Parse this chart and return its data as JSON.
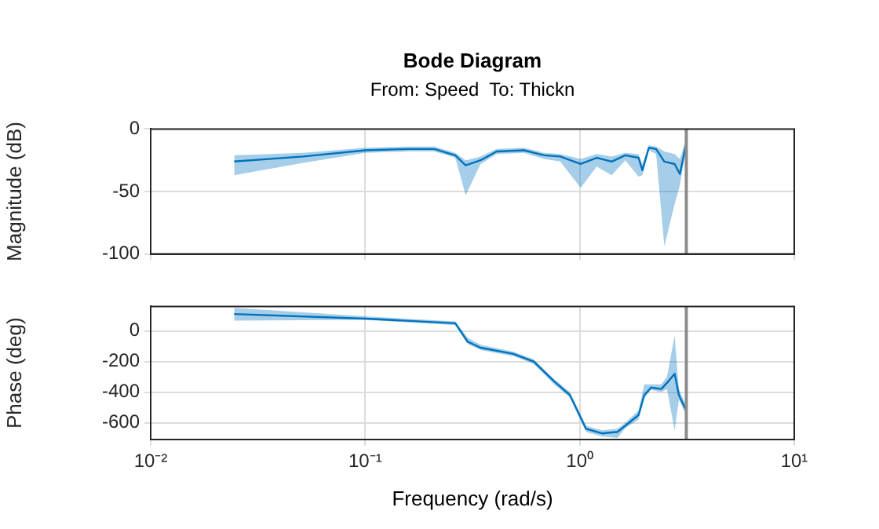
{
  "chart_data": [
    {
      "type": "line",
      "title": "Bode Diagram",
      "subtitle": "From: Speed  To: Thickn",
      "ylabel": "Magnitude (dB)",
      "log": "x",
      "grid": true,
      "tick_labels": "y",
      "xlim": [
        0.01,
        10
      ],
      "xticks": [
        {
          "value": 0.01,
          "label": null
        },
        {
          "value": 0.1,
          "label": null
        },
        {
          "value": 1,
          "label": null
        },
        {
          "value": 10,
          "label": null
        }
      ],
      "ylim": [
        -100,
        0
      ],
      "yticks": [
        -100,
        -50,
        0
      ],
      "x": [
        0.0245,
        0.0515,
        0.1,
        0.158,
        0.21,
        0.263,
        0.294,
        0.345,
        0.41,
        0.55,
        0.683,
        0.81,
        1.01,
        1.2,
        1.41,
        1.63,
        1.88,
        1.96,
        2.1,
        2.27,
        2.48,
        2.77,
        2.93,
        3.16
      ],
      "series": [
        {
          "color": "#0072bd",
          "values": [
            -26,
            -22,
            -17,
            -16,
            -16,
            -21,
            -29,
            -25,
            -18,
            -17,
            -21,
            -22,
            -28,
            -23,
            -26,
            -21,
            -23,
            -33,
            -15,
            -16,
            -26,
            -28,
            -36,
            -9
          ],
          "upper": [
            -21,
            -19,
            -15,
            -14,
            -14,
            -19,
            -25,
            -22,
            -16,
            -15,
            -19,
            -20,
            -24,
            -20,
            -22,
            -19,
            -20,
            -28,
            -13,
            -14,
            -18,
            -20,
            -24,
            -6
          ],
          "lower": [
            -37,
            -27,
            -19,
            -18,
            -18,
            -23,
            -53,
            -28,
            -20,
            -19,
            -24,
            -26,
            -47,
            -30,
            -37,
            -25,
            -38,
            -37,
            -17,
            -20,
            -94,
            -60,
            -45,
            -12
          ]
        }
      ],
      "ref_lines": [
        {
          "axis": "x",
          "value": 3.14,
          "color": "#8c8c8c"
        }
      ]
    },
    {
      "type": "line",
      "ylabel": "Phase (deg)",
      "xlabel": "Frequency (rad/s)",
      "log": "x",
      "grid": true,
      "xlim": [
        0.01,
        10
      ],
      "xticks": [
        {
          "value": 0.01,
          "label": "10⁻²"
        },
        {
          "value": 0.1,
          "label": "10⁻¹"
        },
        {
          "value": 1,
          "label": "10⁰"
        },
        {
          "value": 10,
          "label": "10¹"
        }
      ],
      "ylim": [
        -710,
        160
      ],
      "yticks": [
        -600,
        -400,
        -200,
        0
      ],
      "x": [
        0.0245,
        0.1,
        0.263,
        0.3,
        0.345,
        0.49,
        0.61,
        0.76,
        0.9,
        1.07,
        1.27,
        1.5,
        1.63,
        1.88,
        2.0,
        2.15,
        2.4,
        2.55,
        2.77,
        2.9,
        3.16
      ],
      "series": [
        {
          "color": "#0072bd",
          "values": [
            110,
            80,
            50,
            -70,
            -110,
            -150,
            -200,
            -330,
            -420,
            -640,
            -670,
            -660,
            -620,
            -550,
            -420,
            -370,
            -380,
            -340,
            -280,
            -420,
            -530
          ],
          "upper": [
            150,
            95,
            62,
            -45,
            -90,
            -135,
            -185,
            -315,
            -400,
            -620,
            -650,
            -640,
            -600,
            -520,
            -350,
            -350,
            -350,
            -300,
            -30,
            -380,
            -500
          ],
          "lower": [
            67,
            72,
            38,
            -85,
            -125,
            -165,
            -215,
            -350,
            -435,
            -660,
            -690,
            -700,
            -635,
            -580,
            -440,
            -385,
            -400,
            -380,
            -650,
            -450,
            -560
          ]
        }
      ],
      "ref_lines": [
        {
          "axis": "x",
          "value": 3.14,
          "color": "#8c8c8c"
        }
      ]
    }
  ]
}
